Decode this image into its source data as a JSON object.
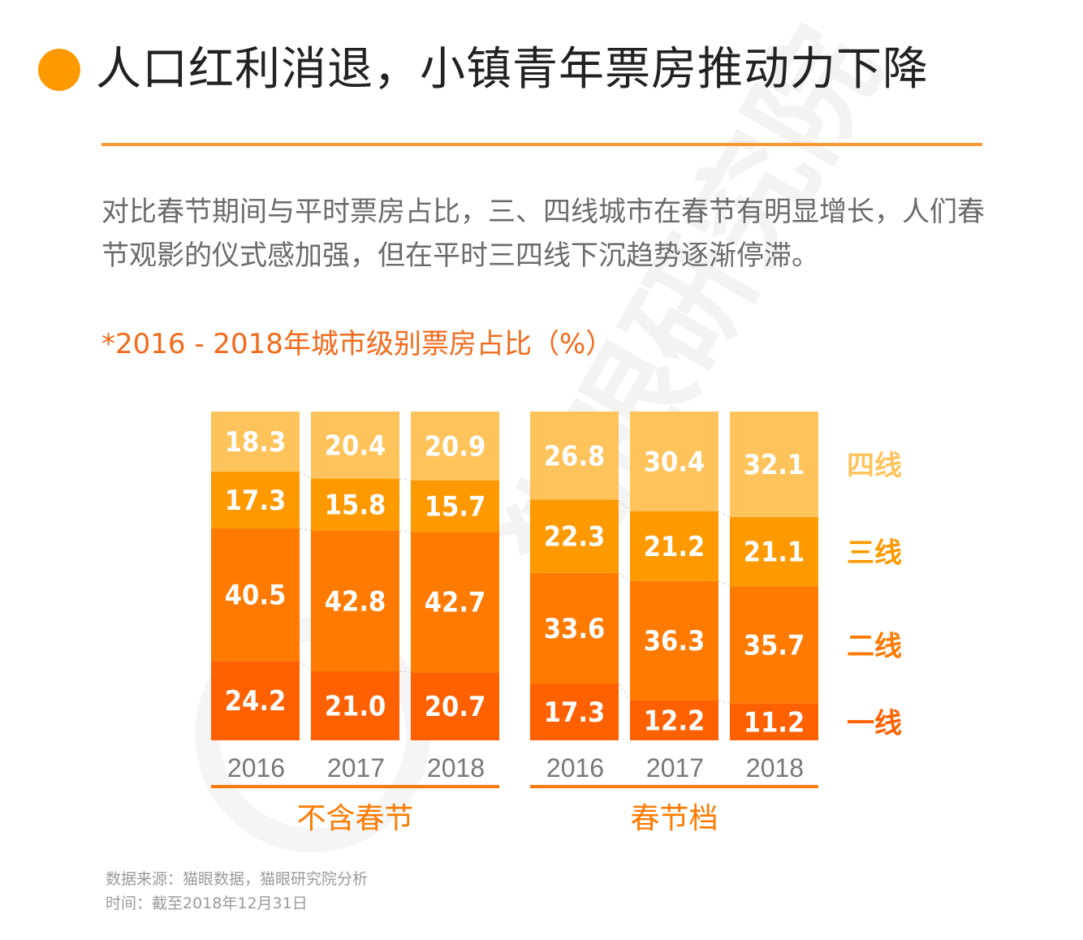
{
  "header": {
    "title": "人口红利消退，小镇青年票房推动力下降"
  },
  "intro": {
    "line1": "对比春节期间与平时票房占比，三、四线城市在春节有明显增长，人们春",
    "line2": "节观影的仪式感加强，但在平时三四线下沉趋势逐渐停滞。"
  },
  "colors": {
    "accent": "#FF9933",
    "tier1": "#FF6000",
    "tier2": "#FF7A00",
    "tier3": "#FF9900",
    "tier4": "#FFC35C"
  },
  "chart_data": {
    "type": "bar",
    "stacked": true,
    "title": "*2016 - 2018年城市级别票房占比（%）",
    "categories": [
      "2016",
      "2017",
      "2018",
      "2016",
      "2017",
      "2018"
    ],
    "groups": [
      {
        "name": "不含春节",
        "categories": [
          "2016",
          "2017",
          "2018"
        ]
      },
      {
        "name": "春节档",
        "categories": [
          "2016",
          "2017",
          "2018"
        ]
      }
    ],
    "series": [
      {
        "name": "一线",
        "values": [
          24.2,
          21.0,
          20.7,
          17.3,
          12.2,
          11.2
        ]
      },
      {
        "name": "二线",
        "values": [
          40.5,
          42.8,
          42.7,
          33.6,
          36.3,
          35.7
        ]
      },
      {
        "name": "三线",
        "values": [
          17.3,
          15.8,
          15.7,
          22.3,
          21.2,
          21.1
        ]
      },
      {
        "name": "四线",
        "values": [
          18.3,
          20.4,
          20.9,
          26.8,
          30.4,
          32.1
        ]
      }
    ],
    "value_labels": [
      [
        "24.2",
        "21.0",
        "20.7",
        "17.3",
        "12.2",
        "11.2"
      ],
      [
        "40.5",
        "42.8",
        "42.7",
        "33.6",
        "36.3",
        "35.7"
      ],
      [
        "17.3",
        "15.8",
        "15.7",
        "22.3",
        "21.2",
        "21.1"
      ],
      [
        "18.3",
        "20.4",
        "20.9",
        "26.8",
        "30.4",
        "32.1"
      ]
    ],
    "ylim": [
      0,
      100
    ],
    "legend_position": "right",
    "grid": false
  },
  "source": {
    "line1": "数据来源：猫眼数据，猫眼研究院分析",
    "line2": "时间：截至2018年12月31日"
  },
  "watermark": {
    "text": "猫眼研究院"
  }
}
